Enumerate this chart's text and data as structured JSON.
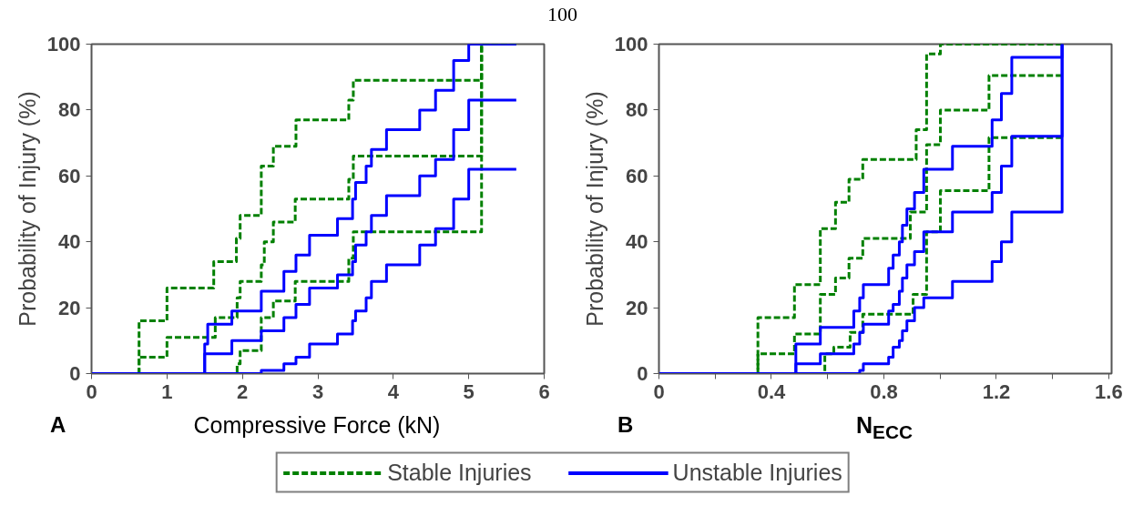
{
  "chart_data": [
    {
      "type": "step",
      "xlabel": "Compressive Force (kN)",
      "ylabel": "Probability of Injury (%)",
      "annotations": [
        "100",
        "A"
      ],
      "xlim": [
        0,
        6
      ],
      "ylim": [
        0,
        100
      ],
      "xticks": [
        0,
        1,
        2,
        3,
        4,
        5,
        6
      ],
      "yticks": [
        0,
        20,
        40,
        60,
        80,
        100
      ],
      "grid": false,
      "legend": "bottom",
      "marker": "none",
      "series": [
        {
          "name": "Stable Injuries",
          "color": "#008000",
          "line_style": "dashed",
          "x": [
            0,
            0.63,
            1.0,
            1.62,
            1.92,
            1.97,
            2.25,
            2.41,
            2.71,
            3.41,
            3.47,
            5.17,
            5.63
          ],
          "values": [
            0,
            16,
            26,
            34,
            41,
            48,
            63,
            69,
            77,
            83,
            89,
            100,
            100
          ]
        },
        {
          "color": "#008000",
          "line_style": "dashed",
          "x": [
            0,
            0.63,
            1.0,
            1.64,
            1.93,
            1.97,
            2.25,
            2.29,
            2.41,
            2.7,
            3.41,
            3.47,
            5.17,
            5.63
          ],
          "values": [
            0,
            5,
            11,
            17,
            23,
            28,
            33,
            40,
            46,
            53,
            59,
            66,
            100,
            100
          ]
        },
        {
          "color": "#008000",
          "line_style": "dashed",
          "x": [
            0,
            1.93,
            1.97,
            2.25,
            2.41,
            2.7,
            3.41,
            3.47,
            5.17,
            5.63
          ],
          "values": [
            0,
            3,
            7,
            17,
            22,
            28,
            35,
            43,
            100,
            100
          ]
        },
        {
          "name": "Unstable Injuries",
          "color": "#0000ff",
          "line_style": "solid",
          "x": [
            0,
            1.5,
            1.54,
            1.86,
            2.25,
            2.55,
            2.71,
            2.89,
            3.26,
            3.46,
            3.5,
            3.64,
            3.71,
            3.91,
            4.35,
            4.56,
            4.8,
            5.0,
            5.63
          ],
          "values": [
            0,
            9,
            15,
            19,
            25,
            31,
            36,
            42,
            47,
            53,
            58,
            63,
            68,
            74,
            80,
            86,
            95,
            100,
            100
          ]
        },
        {
          "color": "#0000ff",
          "line_style": "solid",
          "x": [
            0,
            1.5,
            1.86,
            2.25,
            2.55,
            2.71,
            2.89,
            3.26,
            3.46,
            3.5,
            3.64,
            3.71,
            3.91,
            4.35,
            4.56,
            4.8,
            5.0,
            5.63
          ],
          "values": [
            0,
            6,
            10,
            13,
            17,
            21,
            26,
            30,
            34,
            39,
            43,
            48,
            54,
            60,
            65,
            74,
            83,
            83
          ]
        },
        {
          "color": "#0000ff",
          "line_style": "solid",
          "x": [
            0,
            2.25,
            2.55,
            2.71,
            2.89,
            3.26,
            3.46,
            3.5,
            3.64,
            3.71,
            3.91,
            4.35,
            4.56,
            4.8,
            5.0,
            5.63
          ],
          "values": [
            0,
            1,
            3,
            5,
            9,
            12,
            16,
            19,
            23,
            28,
            33,
            39,
            44,
            53,
            62,
            62
          ]
        }
      ]
    },
    {
      "type": "step",
      "xlabel": "N$_{ECC}$",
      "ylabel": "Probability of Injury (%)",
      "annotations": [
        "B"
      ],
      "xlim": [
        0,
        1.61
      ],
      "ylim": [
        0,
        100
      ],
      "xticks": [
        0,
        {
          "value": 0.2,
          "label": null
        },
        0.4,
        {
          "value": 0.6,
          "label": null
        },
        0.8,
        {
          "value": 1.0,
          "label": null
        },
        1.2,
        {
          "value": 1.4,
          "label": null
        },
        1.6
      ],
      "yticks": [
        0,
        20,
        40,
        60,
        80,
        100
      ],
      "grid": false,
      "marker": "none",
      "series": [
        {
          "color": "#008000",
          "line_style": "dashed",
          "x": [
            0,
            0.352,
            0.482,
            0.574,
            0.628,
            0.676,
            0.725,
            0.915,
            0.952,
            1.001,
            1.434
          ],
          "values": [
            0,
            17,
            27,
            44,
            52,
            59,
            65,
            74,
            97,
            100,
            100
          ]
        },
        {
          "color": "#008000",
          "line_style": "dashed",
          "x": [
            0,
            0.352,
            0.482,
            0.574,
            0.628,
            0.676,
            0.725,
            0.894,
            0.952,
            1.001,
            1.174,
            1.434
          ],
          "values": [
            0,
            6,
            12,
            24,
            29,
            35,
            41,
            49,
            69.5,
            80,
            90.5,
            90.5
          ]
        },
        {
          "color": "#008000",
          "line_style": "dashed",
          "x": [
            0,
            0.59,
            0.622,
            0.68,
            0.725,
            0.904,
            0.952,
            1.001,
            1.174,
            1.434
          ],
          "values": [
            0,
            6,
            8,
            12.5,
            18,
            24,
            43,
            55.5,
            71.6,
            71.6
          ]
        },
        {
          "color": "#0000ff",
          "line_style": "solid",
          "x": [
            0,
            0.487,
            0.574,
            0.693,
            0.714,
            0.727,
            0.817,
            0.833,
            0.855,
            0.866,
            0.882,
            0.909,
            0.942,
            1.044,
            1.185,
            1.218,
            1.255,
            1.434
          ],
          "values": [
            0,
            9,
            14,
            19,
            23,
            27,
            32,
            36,
            40,
            45,
            50,
            55,
            62,
            69,
            77,
            85,
            96,
            100
          ]
        },
        {
          "color": "#0000ff",
          "line_style": "solid",
          "x": [
            0,
            0.487,
            0.574,
            0.693,
            0.714,
            0.727,
            0.817,
            0.833,
            0.855,
            0.866,
            0.882,
            0.909,
            0.942,
            1.044,
            1.185,
            1.218,
            1.255,
            1.434
          ],
          "values": [
            0,
            3,
            6,
            9,
            12.5,
            15,
            19,
            21,
            25,
            29,
            33,
            37,
            43,
            49,
            55,
            63,
            72,
            100
          ]
        },
        {
          "color": "#0000ff",
          "line_style": "solid",
          "x": [
            0,
            0.714,
            0.727,
            0.817,
            0.833,
            0.855,
            0.866,
            0.882,
            0.909,
            0.942,
            1.044,
            1.185,
            1.218,
            1.255,
            1.434
          ],
          "values": [
            0,
            1,
            3,
            5,
            8,
            10,
            13,
            16,
            20,
            23,
            28,
            34,
            40,
            49,
            100
          ]
        }
      ]
    }
  ]
}
